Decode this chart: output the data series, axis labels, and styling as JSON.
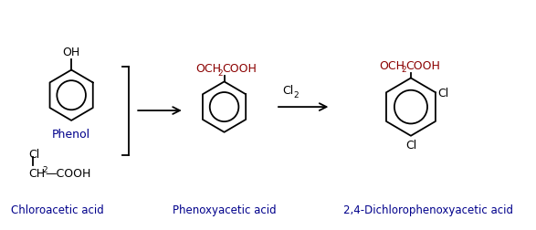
{
  "bg_color": "#ffffff",
  "text_color": "#000000",
  "blue_color": "#00008B",
  "dark_red_color": "#8B0000",
  "line_color": "#000000",
  "phenol_label": "Phenol",
  "chloroacetic_label": "Chloroacetic acid",
  "phenoxyacetic_label": "Phenoxyacetic acid",
  "product_label": "2,4-Dichlorophenoxyacetic acid",
  "oh_label": "OH",
  "cl_label_top": "Cl",
  "ch2_label": "CH",
  "cooh_label": "—COOH",
  "och2cooh_label": "OCH",
  "cl_ortho": "Cl",
  "cl_para": "Cl",
  "cl2_text": "Cl",
  "cl2_sub": "2"
}
